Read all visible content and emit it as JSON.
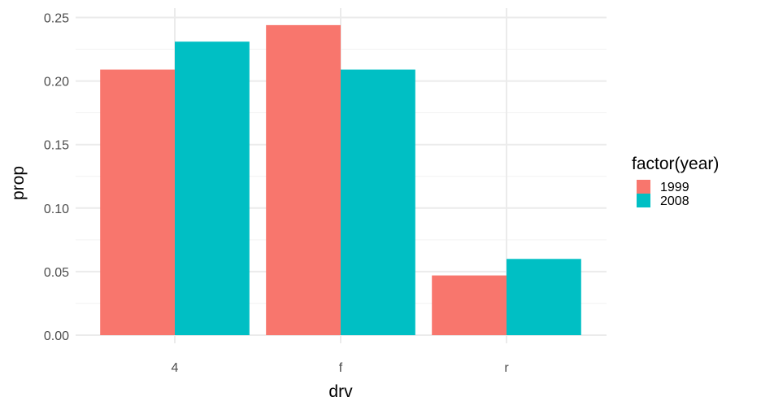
{
  "chart_data": {
    "type": "bar",
    "categories": [
      "4",
      "f",
      "r"
    ],
    "series": [
      {
        "name": "1999",
        "values": [
          0.209,
          0.244,
          0.047
        ],
        "color": "#F8766D"
      },
      {
        "name": "2008",
        "values": [
          0.231,
          0.209,
          0.06
        ],
        "color": "#00BFC4"
      }
    ],
    "xlabel": "drv",
    "ylabel": "prop",
    "ylim": [
      0,
      0.25
    ],
    "yticks": [
      0.0,
      0.05,
      0.1,
      0.15,
      0.2,
      0.25
    ],
    "ytick_labels": [
      "0.00",
      "0.05",
      "0.10",
      "0.15",
      "0.20",
      "0.25"
    ],
    "grid": true,
    "legend": {
      "title": "factor(year)",
      "position": "right"
    }
  }
}
